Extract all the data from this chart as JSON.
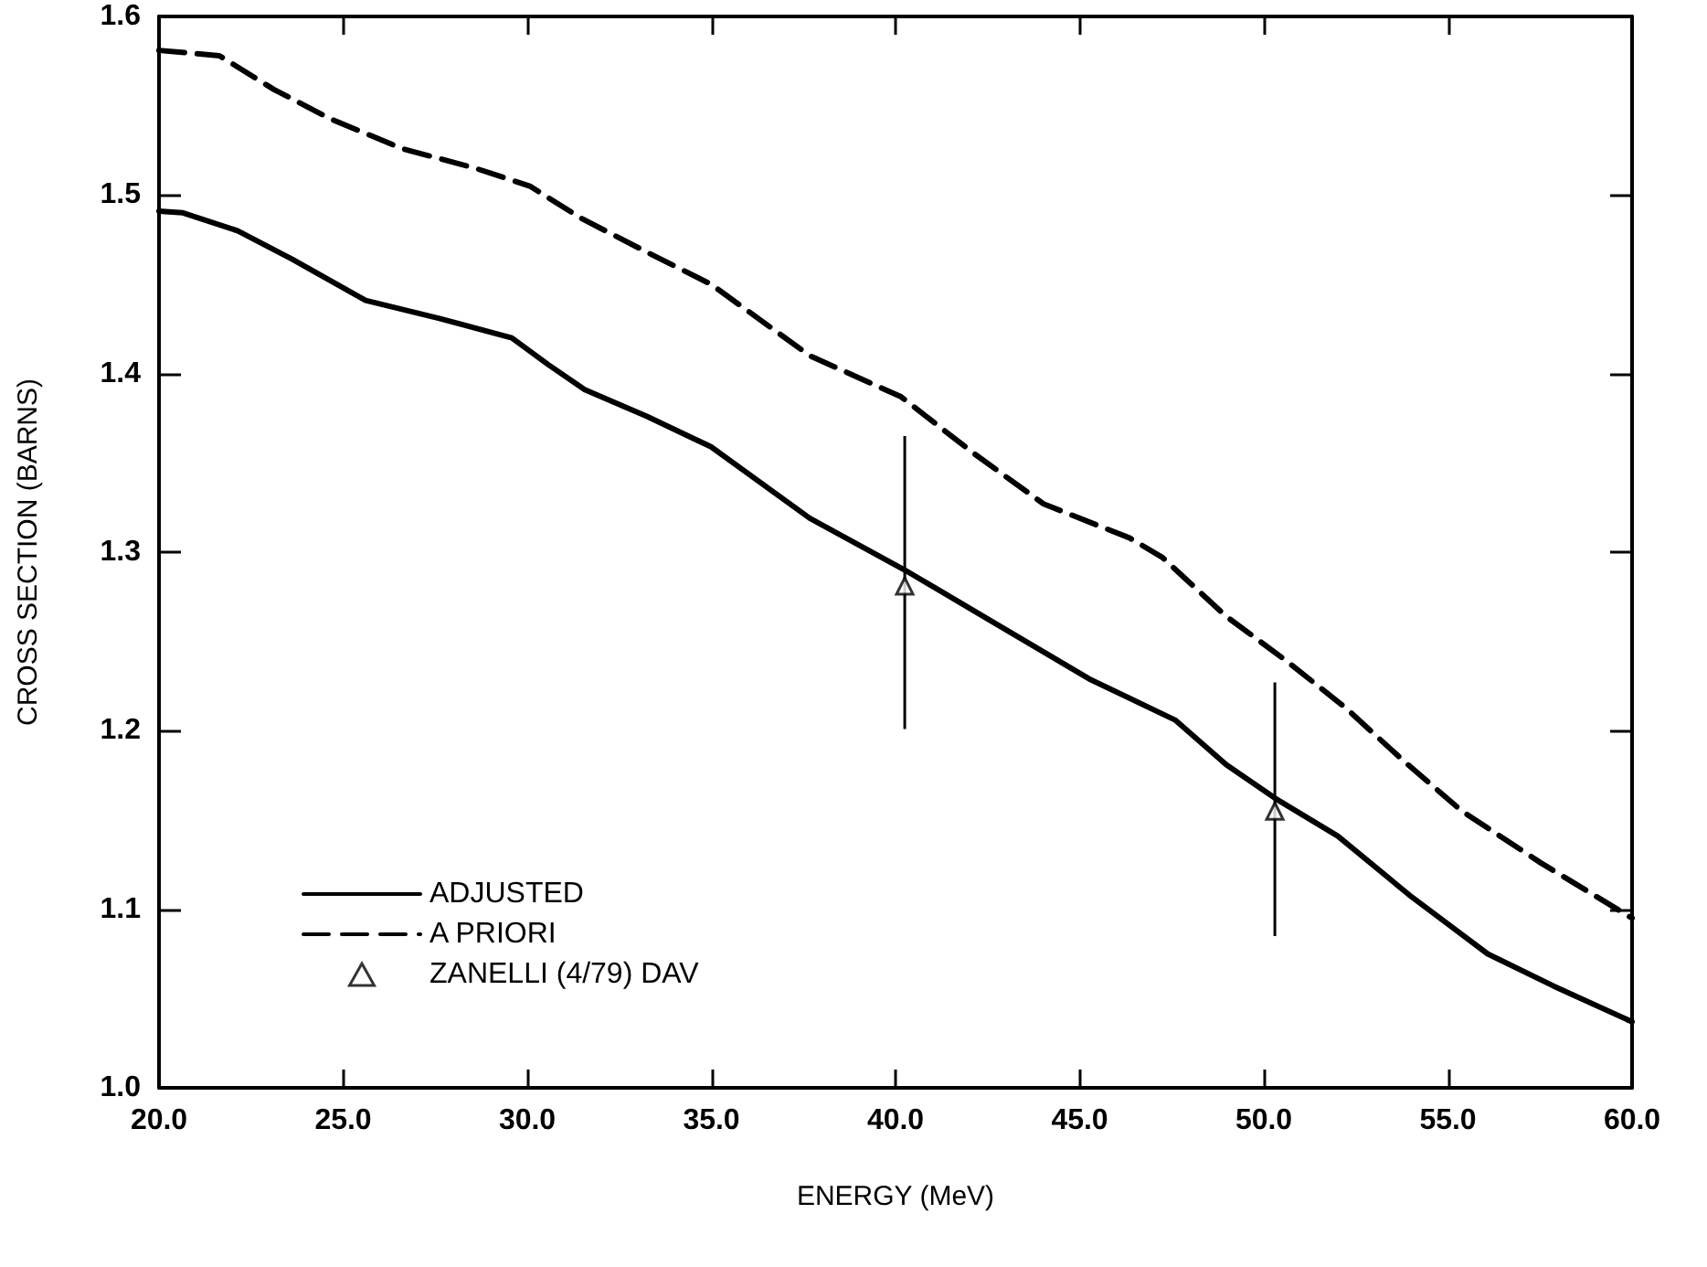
{
  "chart_data": {
    "type": "line",
    "xlabel": "ENERGY (MeV)",
    "ylabel": "CROSS SECTION (BARNS)",
    "xlim": [
      20,
      60
    ],
    "xticks": [
      {
        "value": 20,
        "label": "20.0"
      },
      {
        "value": 25,
        "label": "25.0"
      },
      {
        "value": 30,
        "label": "30.0"
      },
      {
        "value": 35,
        "label": "35.0"
      },
      {
        "value": 40,
        "label": "40.0"
      },
      {
        "value": 45,
        "label": "45.0"
      },
      {
        "value": 50,
        "label": "50.0"
      },
      {
        "value": 55,
        "label": "55.0"
      },
      {
        "value": 60,
        "label": "60.0"
      }
    ],
    "ylim": [
      1.0,
      1.6
    ],
    "yticks": [
      {
        "value": 1.0,
        "label": "1.0"
      },
      {
        "value": 1.1,
        "label": "1.1"
      },
      {
        "value": 1.2,
        "label": "1.2"
      },
      {
        "value": 1.3,
        "label": "1.3"
      },
      {
        "value": 1.4,
        "label": "1.4"
      },
      {
        "value": 1.5,
        "label": "1.5"
      },
      {
        "value": 1.6,
        "label": "1.6"
      }
    ],
    "grid": false,
    "legend": "bottom left",
    "series": [
      {
        "name": "ADJUSTED",
        "type": "line",
        "color": "#000000",
        "line_style": "solid",
        "marker": "none",
        "x": [
          20.0,
          20.65,
          22.13,
          23.62,
          25.61,
          27.59,
          29.58,
          30.57,
          31.56,
          33.25,
          34.99,
          37.67,
          40.25,
          42.63,
          45.26,
          47.59,
          48.98,
          50.32,
          52.01,
          53.95,
          56.08,
          57.87,
          60.0
        ],
        "values": [
          1.491,
          1.49,
          1.48,
          1.464,
          1.441,
          1.431,
          1.42,
          1.405,
          1.391,
          1.376,
          1.359,
          1.319,
          1.29,
          1.261,
          1.229,
          1.206,
          1.181,
          1.162,
          1.141,
          1.108,
          1.075,
          1.057,
          1.037
        ]
      },
      {
        "name": "A PRIORI",
        "type": "line",
        "color": "#000000",
        "line_style": "dashed",
        "marker": "none",
        "x": [
          20.0,
          21.64,
          23.13,
          24.62,
          26.6,
          28.59,
          30.07,
          31.46,
          33.25,
          34.99,
          37.67,
          40.15,
          42.08,
          44.02,
          46.35,
          47.25,
          48.98,
          50.62,
          52.21,
          53.8,
          55.38,
          57.52,
          60.0
        ],
        "values": [
          1.581,
          1.578,
          1.559,
          1.543,
          1.526,
          1.515,
          1.505,
          1.487,
          1.468,
          1.45,
          1.41,
          1.387,
          1.356,
          1.327,
          1.308,
          1.297,
          1.264,
          1.239,
          1.213,
          1.183,
          1.155,
          1.126,
          1.095
        ]
      },
      {
        "name": "ZANELLI (4/79) DAV",
        "type": "scatter",
        "color": "#000000",
        "marker": "triangle",
        "x": [
          40.25,
          50.3
        ],
        "values": [
          1.281,
          1.155
        ],
        "errors": [
          [
            1.201,
            1.365
          ],
          [
            1.085,
            1.227
          ]
        ]
      }
    ]
  }
}
